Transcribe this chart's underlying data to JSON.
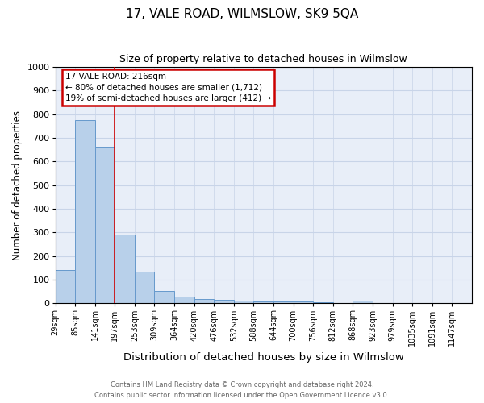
{
  "title": "17, VALE ROAD, WILMSLOW, SK9 5QA",
  "subtitle": "Size of property relative to detached houses in Wilmslow",
  "xlabel": "Distribution of detached houses by size in Wilmslow",
  "ylabel": "Number of detached properties",
  "footer_line1": "Contains HM Land Registry data © Crown copyright and database right 2024.",
  "footer_line2": "Contains public sector information licensed under the Open Government Licence v3.0.",
  "bin_labels": [
    "29sqm",
    "85sqm",
    "141sqm",
    "197sqm",
    "253sqm",
    "309sqm",
    "364sqm",
    "420sqm",
    "476sqm",
    "532sqm",
    "588sqm",
    "644sqm",
    "700sqm",
    "756sqm",
    "812sqm",
    "868sqm",
    "923sqm",
    "979sqm",
    "1035sqm",
    "1091sqm",
    "1147sqm"
  ],
  "bar_values": [
    141,
    775,
    660,
    290,
    135,
    52,
    28,
    17,
    15,
    10,
    8,
    8,
    8,
    6,
    0,
    11,
    0,
    0,
    0,
    0,
    0
  ],
  "bar_color": "#b8d0ea",
  "bar_edge_color": "#6699cc",
  "grid_color": "#c8d4e8",
  "background_color": "#e8eef8",
  "annotation_text": "17 VALE ROAD: 216sqm\n← 80% of detached houses are smaller (1,712)\n19% of semi-detached houses are larger (412) →",
  "annotation_box_color": "#ffffff",
  "annotation_border_color": "#cc0000",
  "ylim": [
    0,
    1000
  ],
  "yticks": [
    0,
    100,
    200,
    300,
    400,
    500,
    600,
    700,
    800,
    900,
    1000
  ],
  "title_fontsize": 11,
  "subtitle_fontsize": 9,
  "ylabel_fontsize": 8.5,
  "xlabel_fontsize": 9.5,
  "tick_fontsize": 7,
  "annotation_fontsize": 7.5,
  "footer_fontsize": 6
}
